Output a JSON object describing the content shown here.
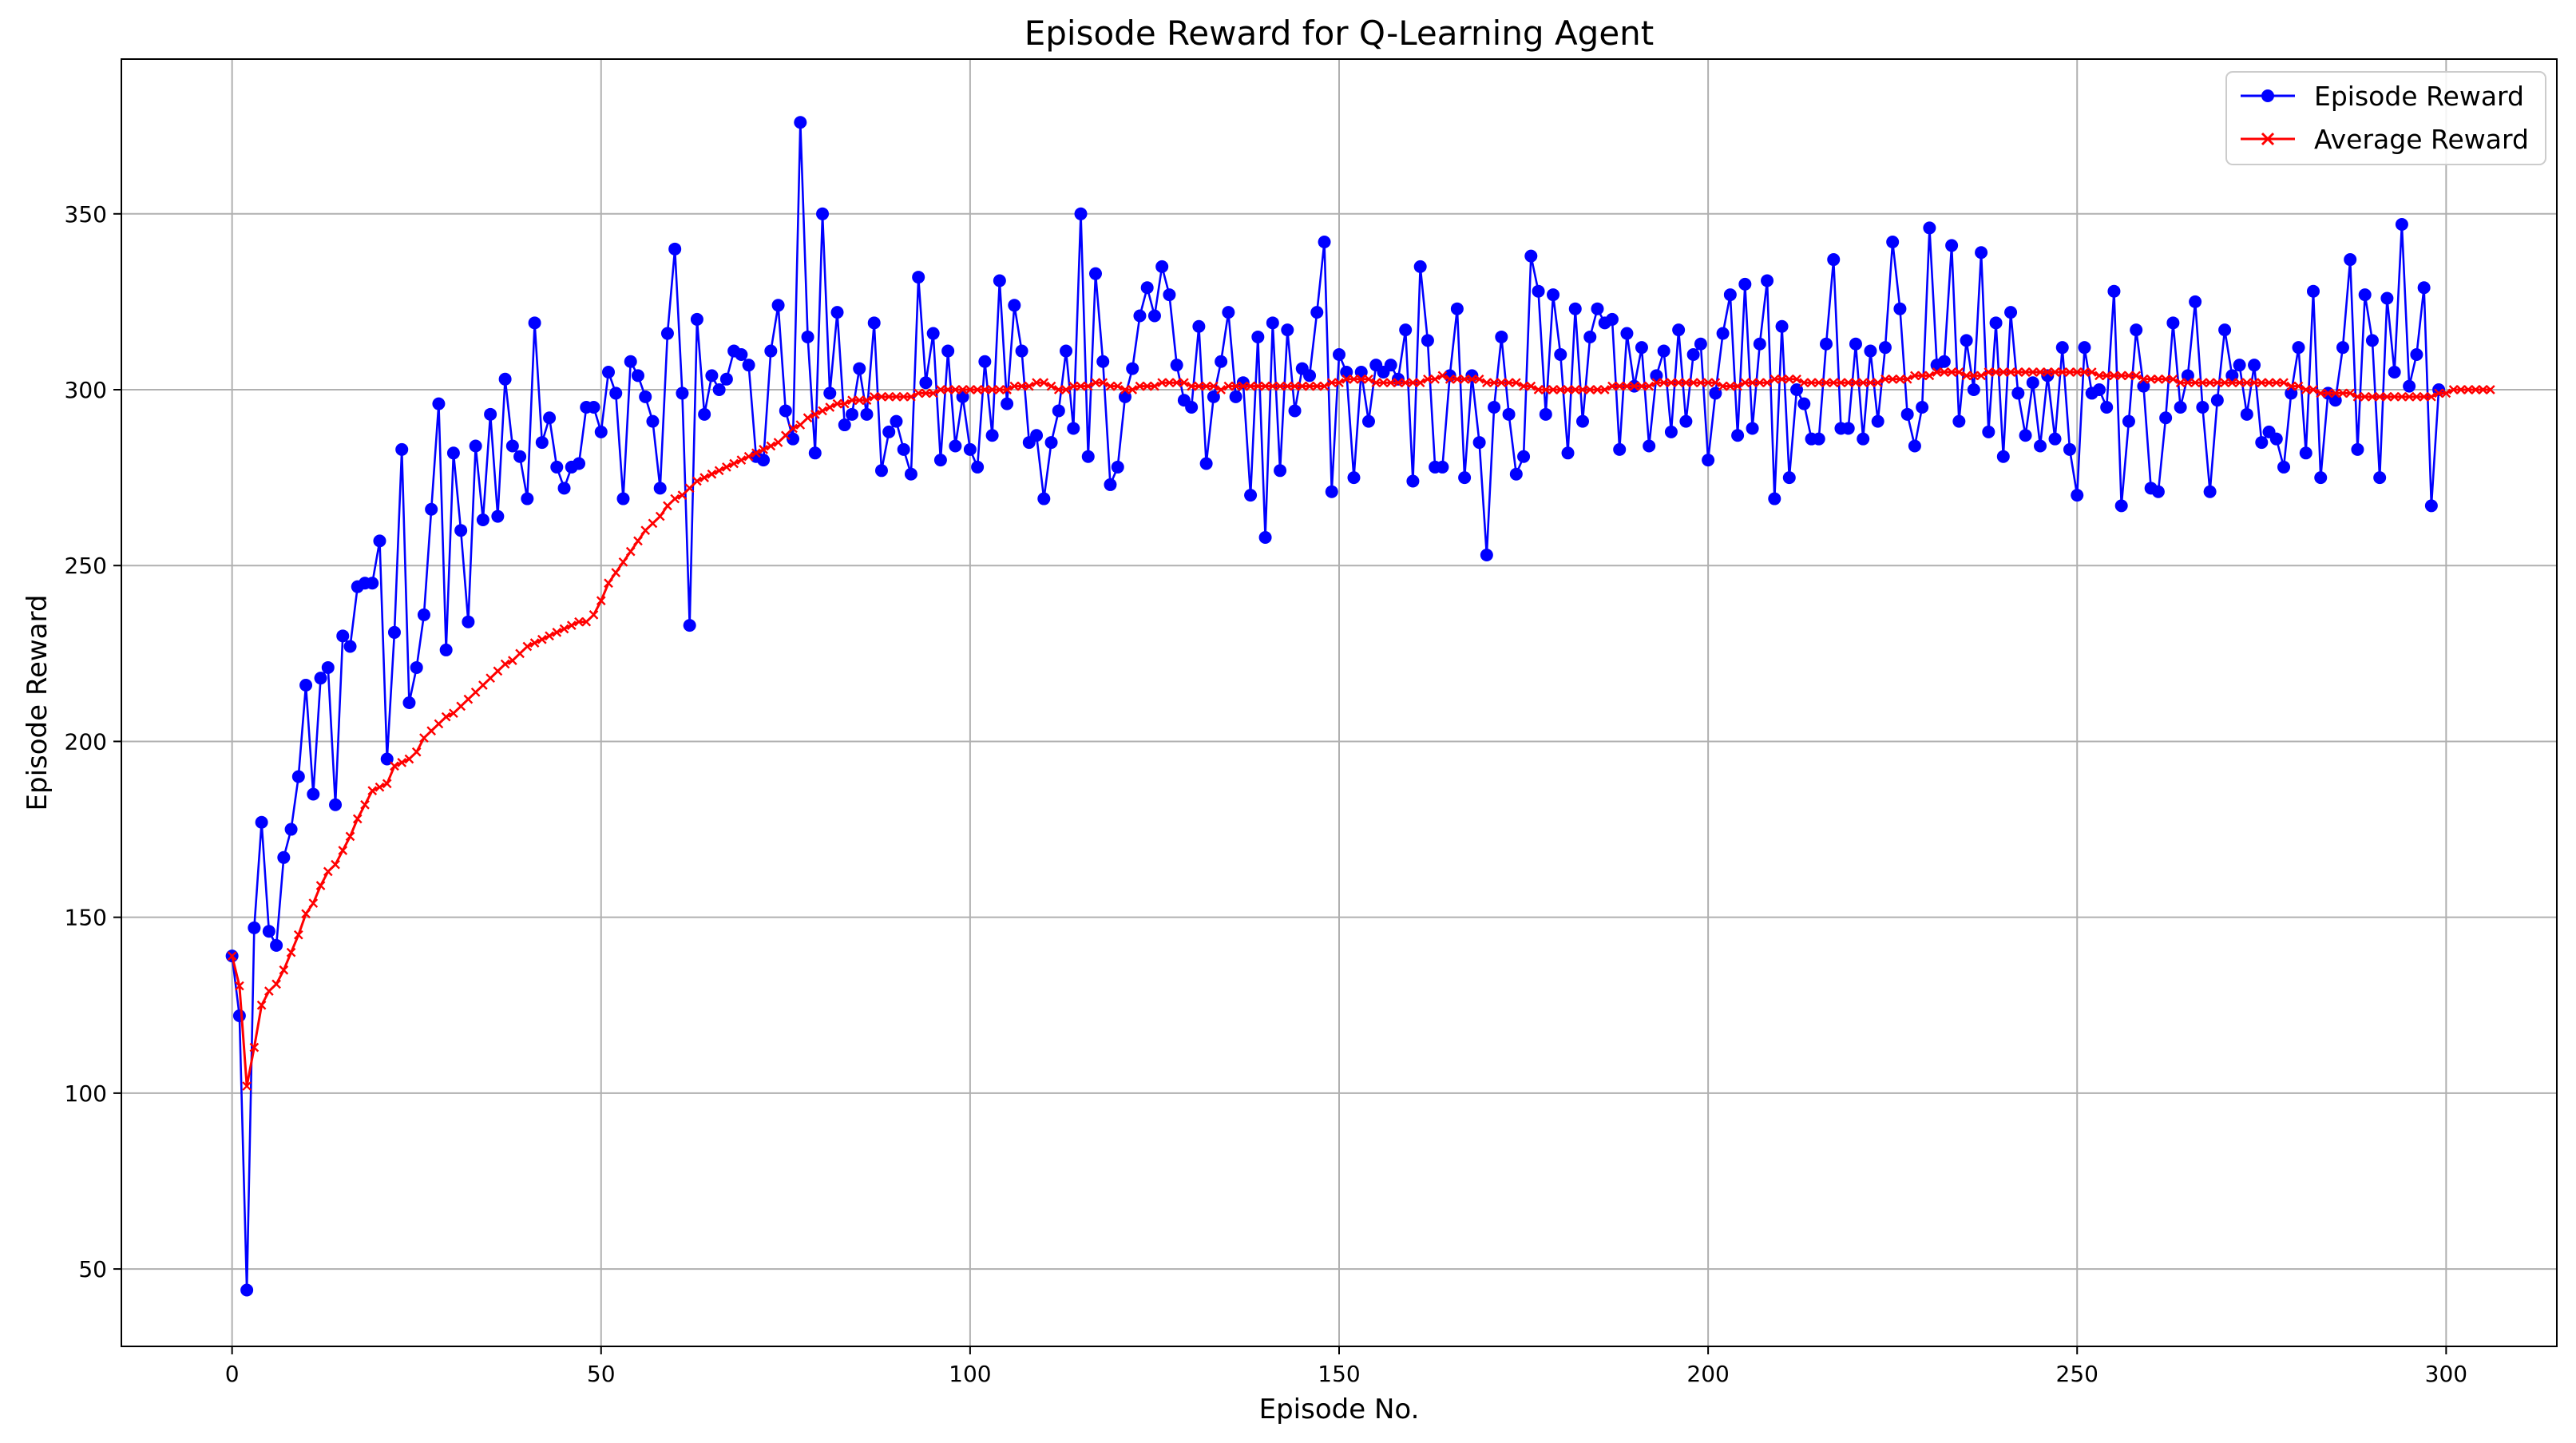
{
  "chart_data": {
    "type": "line",
    "title": "Episode Reward for Q-Learning Agent",
    "xlabel": "Episode No.",
    "ylabel": "Episode Reward",
    "xlim": [
      -15,
      315
    ],
    "ylim": [
      28,
      394
    ],
    "xticks": [
      0,
      50,
      100,
      150,
      200,
      250,
      300
    ],
    "yticks": [
      50,
      100,
      150,
      200,
      250,
      300,
      350
    ],
    "grid": true,
    "legend": "top-right",
    "series": [
      {
        "name": "Episode Reward",
        "color": "#0000ff",
        "marker": "circle",
        "values": [
          139,
          122,
          44,
          147,
          177,
          146,
          142,
          167,
          175,
          190,
          216,
          185,
          218,
          221,
          182,
          230,
          227,
          244,
          245,
          245,
          257,
          195,
          231,
          283,
          211,
          221,
          236,
          266,
          296,
          226,
          282,
          260,
          234,
          284,
          263,
          293,
          264,
          303,
          284,
          281,
          269,
          319,
          285,
          292,
          278,
          272,
          278,
          279,
          295,
          295,
          288,
          305,
          299,
          269,
          308,
          304,
          298,
          291,
          272,
          316,
          340,
          299,
          233,
          320,
          293,
          304,
          300,
          303,
          311,
          310,
          307,
          281,
          280,
          311,
          324,
          294,
          286,
          376,
          315,
          282,
          350,
          299,
          322,
          290,
          293,
          306,
          293,
          319,
          277,
          288,
          291,
          283,
          276,
          332,
          302,
          316,
          280,
          311,
          284,
          298,
          283,
          278,
          308,
          287,
          331,
          296,
          324,
          311,
          285,
          287,
          269,
          285,
          294,
          311,
          289,
          350,
          281,
          333,
          308,
          273,
          278,
          298,
          306,
          321,
          329,
          321,
          335,
          327,
          307,
          297,
          295,
          318,
          279,
          298,
          308,
          322,
          298,
          302,
          270,
          315,
          258,
          319,
          277,
          317,
          294,
          306,
          304,
          322,
          342,
          271,
          310,
          305,
          275,
          305,
          291,
          307,
          305,
          307,
          303,
          317,
          274,
          335,
          314,
          278,
          278,
          304,
          323,
          275,
          304,
          285,
          253,
          295,
          315,
          293,
          276,
          281,
          338,
          328,
          293,
          327,
          310,
          282,
          323,
          291,
          315,
          323,
          319,
          320,
          283,
          316,
          301,
          312,
          284,
          304,
          311,
          288,
          317,
          291,
          310,
          313,
          280,
          299,
          316,
          327,
          287,
          330,
          289,
          313,
          331,
          269,
          318,
          275,
          300,
          296,
          286,
          286,
          313,
          337,
          289,
          289,
          313,
          286,
          311,
          291,
          312,
          342,
          323,
          293,
          284,
          295,
          346,
          307,
          308,
          341,
          291,
          314,
          300,
          339,
          288,
          319,
          281,
          322,
          299,
          287,
          302,
          284,
          304,
          286,
          312,
          283,
          270,
          312,
          299,
          300,
          295,
          328,
          267,
          291,
          317,
          301,
          272,
          271,
          292,
          319,
          295,
          304,
          325,
          295,
          271,
          297,
          317,
          304,
          307,
          293,
          307,
          285,
          288,
          286,
          278,
          299,
          312,
          282,
          328,
          275,
          299,
          297,
          312,
          337,
          283,
          327,
          314,
          275,
          326,
          305,
          347,
          301,
          310,
          329,
          267,
          300
        ]
      },
      {
        "name": "Average Reward",
        "color": "#ff0000",
        "marker": "x",
        "values": [
          139,
          130.5,
          102,
          113,
          125,
          129,
          131,
          135,
          140,
          145,
          151,
          154,
          159,
          163,
          165,
          169,
          173,
          178,
          182,
          186,
          187,
          188,
          193,
          194,
          195,
          197,
          201,
          203,
          205,
          207,
          208,
          210,
          212,
          214,
          216,
          218,
          220,
          222,
          223,
          225,
          227,
          228,
          229,
          230,
          231,
          232,
          233,
          234,
          234,
          236,
          240,
          245,
          248,
          251,
          254,
          257,
          260,
          262,
          264,
          267,
          269,
          270,
          272,
          274,
          275,
          276,
          277,
          278,
          279,
          280,
          281,
          282,
          283,
          284,
          285,
          287,
          289,
          290,
          292,
          293,
          294,
          295,
          296,
          296,
          297,
          297,
          297,
          298,
          298,
          298,
          298,
          298,
          298,
          299,
          299,
          299,
          300,
          300,
          300,
          300,
          300,
          300,
          300,
          300,
          300,
          300,
          301,
          301,
          301,
          302,
          302,
          301,
          300,
          300,
          301,
          301,
          301,
          302,
          302,
          301,
          301,
          300,
          300,
          301,
          301,
          301,
          302,
          302,
          302,
          302,
          301,
          301,
          301,
          301,
          300,
          301,
          301,
          301,
          301,
          301,
          301,
          301,
          301,
          301,
          301,
          301,
          301,
          301,
          301,
          302,
          302,
          303,
          303,
          303,
          303,
          302,
          302,
          302,
          302,
          302,
          302,
          302,
          303,
          303,
          304,
          303,
          303,
          303,
          303,
          303,
          302,
          302,
          302,
          302,
          302,
          301,
          301,
          300,
          300,
          300,
          300,
          300,
          300,
          300,
          300,
          300,
          300,
          301,
          301,
          301,
          301,
          301,
          301,
          302,
          302,
          302,
          302,
          302,
          302,
          302,
          302,
          302,
          301,
          301,
          301,
          302,
          302,
          302,
          302,
          303,
          303,
          303,
          303,
          302,
          302,
          302,
          302,
          302,
          302,
          302,
          302,
          302,
          302,
          302,
          303,
          303,
          303,
          303,
          304,
          304,
          304,
          305,
          305,
          305,
          305,
          304,
          304,
          304,
          305,
          305,
          305,
          305,
          305,
          305,
          305,
          305,
          305,
          305,
          305,
          305,
          305,
          305,
          305,
          304,
          304,
          304,
          304,
          304,
          304,
          303,
          303,
          303,
          303,
          303,
          302,
          302,
          302,
          302,
          302,
          302,
          302,
          302,
          302,
          302,
          302,
          302,
          302,
          302,
          302,
          301,
          301,
          300,
          300,
          299,
          299,
          299,
          299,
          299,
          298,
          298,
          298,
          298,
          298,
          298,
          298,
          298,
          298,
          298,
          298,
          299,
          299,
          300,
          300,
          300,
          300,
          300,
          300
        ]
      }
    ]
  }
}
